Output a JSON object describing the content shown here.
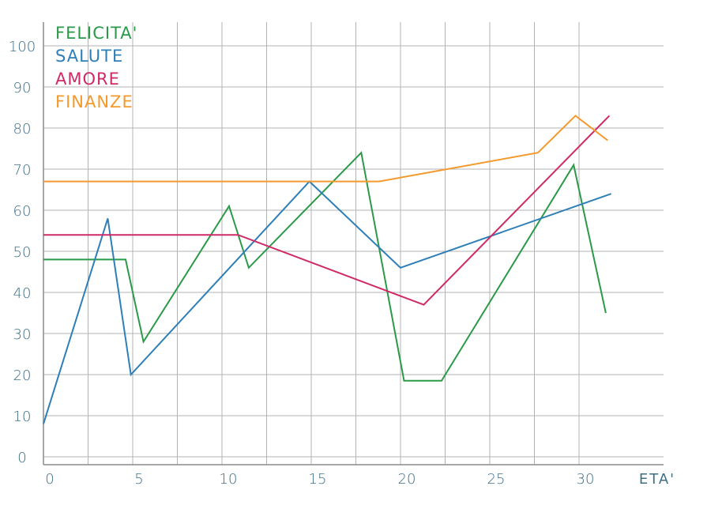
{
  "chart_data": {
    "type": "line",
    "xlabel": "ETA'",
    "ylabel": "",
    "xlim": [
      0,
      31.5
    ],
    "ylim": [
      0,
      100
    ],
    "x_ticks": [
      "0",
      "5",
      "10",
      "15",
      "20",
      "25",
      "30"
    ],
    "y_ticks": [
      "0",
      "10",
      "20",
      "30",
      "40",
      "50",
      "60",
      "70",
      "80",
      "90",
      "100"
    ],
    "grid": true,
    "legend_position": "top-left",
    "series": [
      {
        "name": "FELICITA'",
        "color": "#2a9a48",
        "points": [
          [
            0,
            48
          ],
          [
            4.6,
            48
          ],
          [
            5.6,
            28
          ],
          [
            10.4,
            61
          ],
          [
            11.5,
            46
          ],
          [
            17.8,
            74
          ],
          [
            20.2,
            18.5
          ],
          [
            22.3,
            18.5
          ],
          [
            29.7,
            71
          ],
          [
            31.5,
            35
          ]
        ]
      },
      {
        "name": "SALUTE",
        "color": "#2e7fb8",
        "points": [
          [
            0,
            8
          ],
          [
            3.6,
            58
          ],
          [
            4.9,
            20
          ],
          [
            14.9,
            67
          ],
          [
            20,
            46
          ],
          [
            31.8,
            64
          ]
        ]
      },
      {
        "name": "AMORE",
        "color": "#cf2a66",
        "points": [
          [
            0,
            54
          ],
          [
            10.9,
            54
          ],
          [
            21.3,
            37
          ],
          [
            31.7,
            83
          ]
        ]
      },
      {
        "name": "FINANZE",
        "color": "#f49a2c",
        "points": [
          [
            0,
            67
          ],
          [
            18.8,
            67
          ],
          [
            27.7,
            74
          ],
          [
            29.8,
            83
          ],
          [
            31.6,
            77
          ]
        ]
      }
    ]
  }
}
